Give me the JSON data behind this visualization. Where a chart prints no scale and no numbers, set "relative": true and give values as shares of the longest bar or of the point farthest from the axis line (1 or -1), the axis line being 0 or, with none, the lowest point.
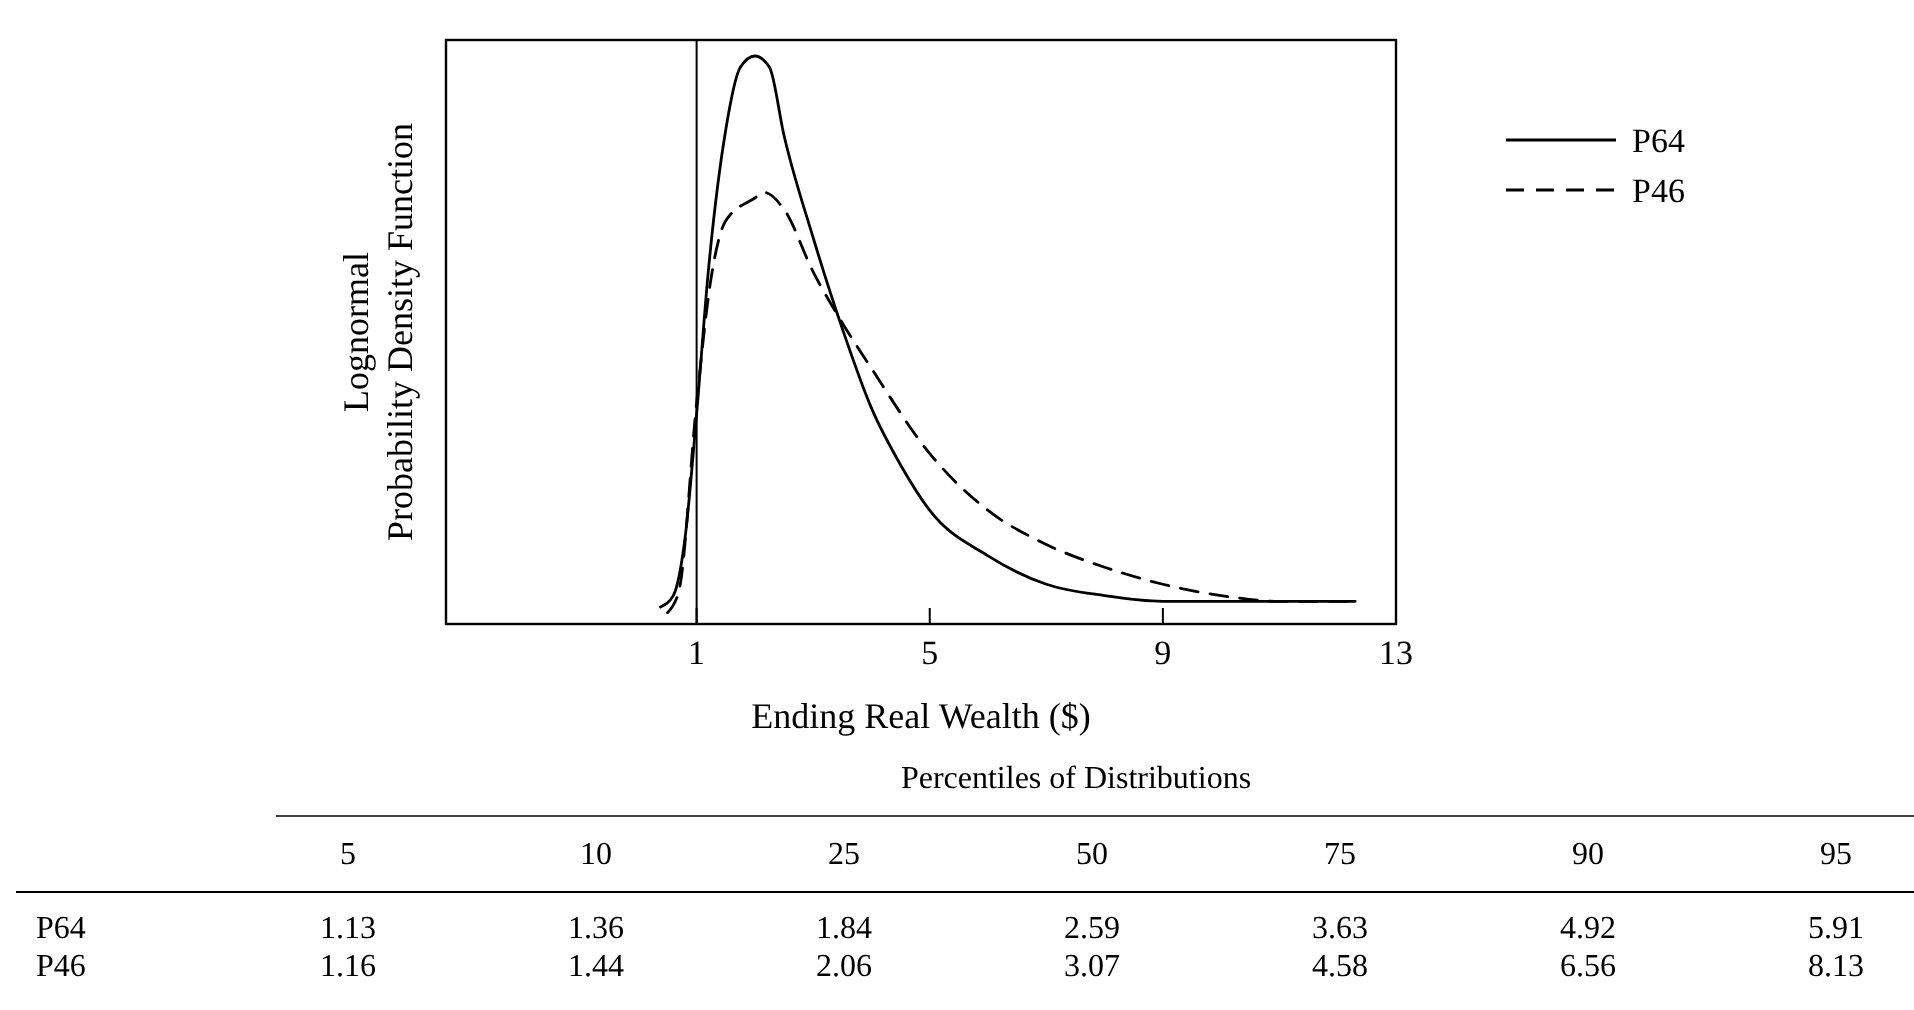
{
  "chart_data": [
    {
      "type": "line",
      "relative": true,
      "xlabel": "Ending Real Wealth ($)",
      "ylabel": "Lognormal\nProbability Density Function",
      "xlim": [
        -3.3,
        13
      ],
      "xticks": [
        1,
        5,
        9,
        13
      ],
      "legend": "right",
      "ref_lines": [
        {
          "axis": "x",
          "value": 1,
          "color": "#000000"
        }
      ],
      "series": [
        {
          "name": "P64",
          "color": "#000000",
          "line_style": "solid",
          "x": [
            0.38,
            0.6,
            0.8,
            1,
            1.2,
            1.5,
            1.75,
            2,
            2.25,
            2.5,
            3,
            3.5,
            4,
            4.5,
            5,
            6,
            7,
            8,
            9,
            10,
            11,
            12.3
          ],
          "values": [
            0.03,
            0.05,
            0.15,
            0.37,
            0.62,
            0.87,
            0.98,
            1,
            0.98,
            0.86,
            0.68,
            0.52,
            0.38,
            0.28,
            0.2,
            0.12,
            0.07,
            0.05,
            0.04,
            0.04,
            0.04,
            0.04
          ]
        },
        {
          "name": "P46",
          "color": "#000000",
          "line_style": "dashed",
          "x": [
            0.5,
            0.7,
            1,
            1.25,
            1.5,
            2,
            2.15,
            2.5,
            3,
            3.5,
            4,
            5,
            6,
            7,
            8,
            9,
            10,
            11,
            12.3
          ],
          "values": [
            0.02,
            0.06,
            0.39,
            0.61,
            0.71,
            0.75,
            0.76,
            0.73,
            0.62,
            0.53,
            0.45,
            0.3,
            0.2,
            0.14,
            0.1,
            0.07,
            0.05,
            0.04,
            0.04
          ]
        }
      ]
    },
    {
      "type": "other",
      "title": "Percentiles of Distributions",
      "data_labels": true,
      "categories": [
        "5",
        "10",
        "25",
        "50",
        "75",
        "90",
        "95"
      ],
      "series": [
        {
          "name": "P64",
          "values": [
            1.13,
            1.36,
            1.84,
            2.59,
            3.63,
            4.92,
            5.91
          ]
        },
        {
          "name": "P46",
          "values": [
            1.16,
            1.44,
            2.06,
            3.07,
            4.58,
            6.56,
            8.13
          ]
        }
      ]
    }
  ]
}
